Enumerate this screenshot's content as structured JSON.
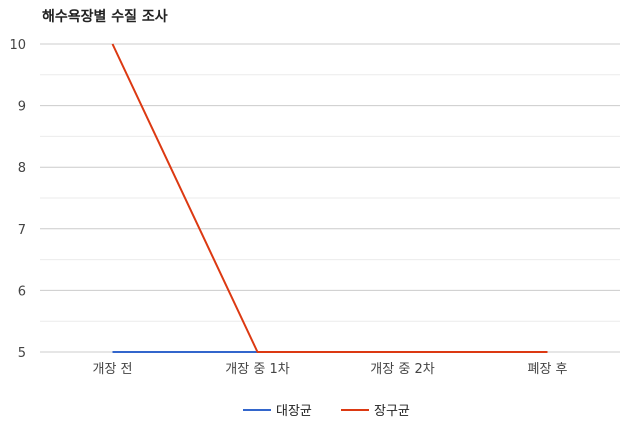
{
  "chart_data": {
    "type": "line",
    "title": "해수욕장별 수질 조사",
    "categories": [
      "개장 전",
      "개장 중 1차",
      "개장 중 2차",
      "폐장 후"
    ],
    "series": [
      {
        "name": "대장균",
        "values": [
          5,
          5,
          5,
          5
        ],
        "color": "#3366cc"
      },
      {
        "name": "장구균",
        "values": [
          10,
          5,
          5,
          5
        ],
        "color": "#dc3912"
      }
    ],
    "ylim": [
      5,
      10
    ],
    "yticks": [
      "5",
      "6",
      "7",
      "8",
      "9",
      "10"
    ],
    "grid": true,
    "legend": "bottom"
  }
}
